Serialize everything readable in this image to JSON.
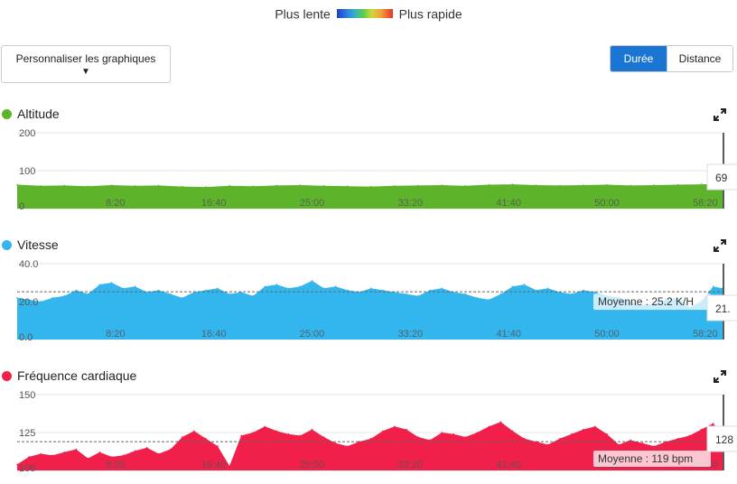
{
  "speed_legend": {
    "slow_label": "Plus lente",
    "fast_label": "Plus rapide"
  },
  "controls": {
    "customize_label": "Personnaliser les graphiques",
    "toggle": {
      "duration_label": "Durée",
      "distance_label": "Distance",
      "selected": "Durée"
    }
  },
  "colors": {
    "altitude": "#5db32a",
    "speed": "#33b5ee",
    "heart_rate": "#f1204a",
    "toggle_active": "#1a76d2"
  },
  "chart_data": [
    {
      "id": "altitude",
      "type": "area",
      "title": "Altitude",
      "color": "#5db32a",
      "ylim": [
        0,
        200
      ],
      "y_ticks": [
        0,
        100,
        200
      ],
      "y_tick_labels": [
        "0",
        "100",
        "200"
      ],
      "x_ticks": [
        8.333,
        16.667,
        25,
        33.333,
        41.667,
        50,
        58.333
      ],
      "x_tick_labels": [
        "8:20",
        "16:40",
        "25:00",
        "33:20",
        "41:40",
        "50:00",
        "58:20"
      ],
      "xlim": [
        0,
        59.8
      ],
      "x": [
        0,
        2,
        4,
        6,
        8,
        10,
        12,
        14,
        16,
        18,
        20,
        22,
        24,
        26,
        28,
        30,
        32,
        34,
        36,
        38,
        40,
        42,
        44,
        46,
        48,
        50,
        52,
        54,
        56,
        58,
        59.8
      ],
      "values": [
        63,
        60,
        61,
        59,
        62,
        60,
        61,
        58,
        57,
        60,
        59,
        61,
        62,
        60,
        59,
        58,
        60,
        61,
        62,
        60,
        63,
        64,
        62,
        61,
        62,
        63,
        61,
        62,
        63,
        64,
        65
      ],
      "cursor_value_label": "69",
      "average_label": ""
    },
    {
      "id": "speed",
      "type": "area",
      "title": "Vitesse",
      "color": "#33b5ee",
      "ylim": [
        0,
        40
      ],
      "y_ticks": [
        0,
        20,
        40
      ],
      "y_tick_labels": [
        "0.0",
        "20.0",
        "40.0"
      ],
      "x_ticks": [
        8.333,
        16.667,
        25,
        33.333,
        41.667,
        50,
        58.333
      ],
      "x_tick_labels": [
        "8:20",
        "16:40",
        "25:00",
        "33:20",
        "41:40",
        "50:00",
        "58:20"
      ],
      "xlim": [
        0,
        59.8
      ],
      "average": 25.2,
      "average_label": "Moyenne : 25.2 K/H",
      "x": [
        0,
        1,
        2,
        3,
        4,
        5,
        6,
        7,
        8,
        9,
        10,
        11,
        12,
        13,
        14,
        15,
        16,
        17,
        18,
        19,
        20,
        21,
        22,
        23,
        24,
        25,
        26,
        27,
        28,
        29,
        30,
        31,
        32,
        33,
        34,
        35,
        36,
        37,
        38,
        39,
        40,
        41,
        42,
        43,
        44,
        45,
        46,
        47,
        48,
        49,
        50,
        51,
        52,
        53,
        54,
        55,
        56,
        57,
        58,
        59,
        59.8
      ],
      "values": [
        22,
        21,
        20,
        22,
        23,
        26,
        24,
        29,
        30,
        27,
        28,
        25,
        26,
        24,
        22,
        25,
        26,
        27,
        24,
        25,
        23,
        28,
        29,
        27,
        28,
        31,
        27,
        28,
        26,
        25,
        27,
        26,
        25,
        24,
        23,
        26,
        27,
        25,
        24,
        22,
        21,
        24,
        28,
        29,
        26,
        27,
        25,
        24,
        26,
        25,
        23,
        22,
        20,
        18,
        19,
        21,
        22,
        17,
        20,
        28,
        27
      ],
      "cursor_value_label": "21.",
      "cursor_value_label_raw": "21."
    },
    {
      "id": "heart_rate",
      "type": "area",
      "title": "Fréquence cardiaque",
      "color": "#f1204a",
      "ylim": [
        100,
        150
      ],
      "y_ticks": [
        100,
        125,
        150
      ],
      "y_tick_labels": [
        "100",
        "125",
        "150"
      ],
      "x_ticks": [
        8.333,
        16.667,
        25,
        33.333,
        41.667,
        50,
        58.333
      ],
      "x_tick_labels": [
        "8:20",
        "16:40",
        "25:00",
        "33:20",
        "41:40",
        "50:00",
        "58:20"
      ],
      "xlim": [
        0,
        59.8
      ],
      "average": 119,
      "average_label": "Moyenne : 119 bpm",
      "x": [
        0,
        1,
        2,
        3,
        4,
        5,
        6,
        7,
        8,
        9,
        10,
        11,
        12,
        13,
        14,
        15,
        16,
        17,
        18,
        19,
        20,
        21,
        22,
        23,
        24,
        25,
        26,
        27,
        28,
        29,
        30,
        31,
        32,
        33,
        34,
        35,
        36,
        37,
        38,
        39,
        40,
        41,
        42,
        43,
        44,
        45,
        46,
        47,
        48,
        49,
        50,
        51,
        52,
        53,
        54,
        55,
        56,
        57,
        58,
        59,
        59.8
      ],
      "values": [
        104,
        109,
        111,
        110,
        112,
        114,
        108,
        112,
        109,
        110,
        113,
        115,
        111,
        114,
        122,
        126,
        121,
        116,
        103,
        123,
        125,
        129,
        126,
        124,
        123,
        127,
        122,
        118,
        116,
        119,
        121,
        126,
        129,
        127,
        122,
        120,
        125,
        124,
        122,
        125,
        129,
        132,
        126,
        121,
        119,
        117,
        121,
        124,
        127,
        129,
        124,
        117,
        120,
        118,
        116,
        119,
        121,
        123,
        127,
        131,
        124
      ],
      "cursor_value_label": "128"
    }
  ]
}
